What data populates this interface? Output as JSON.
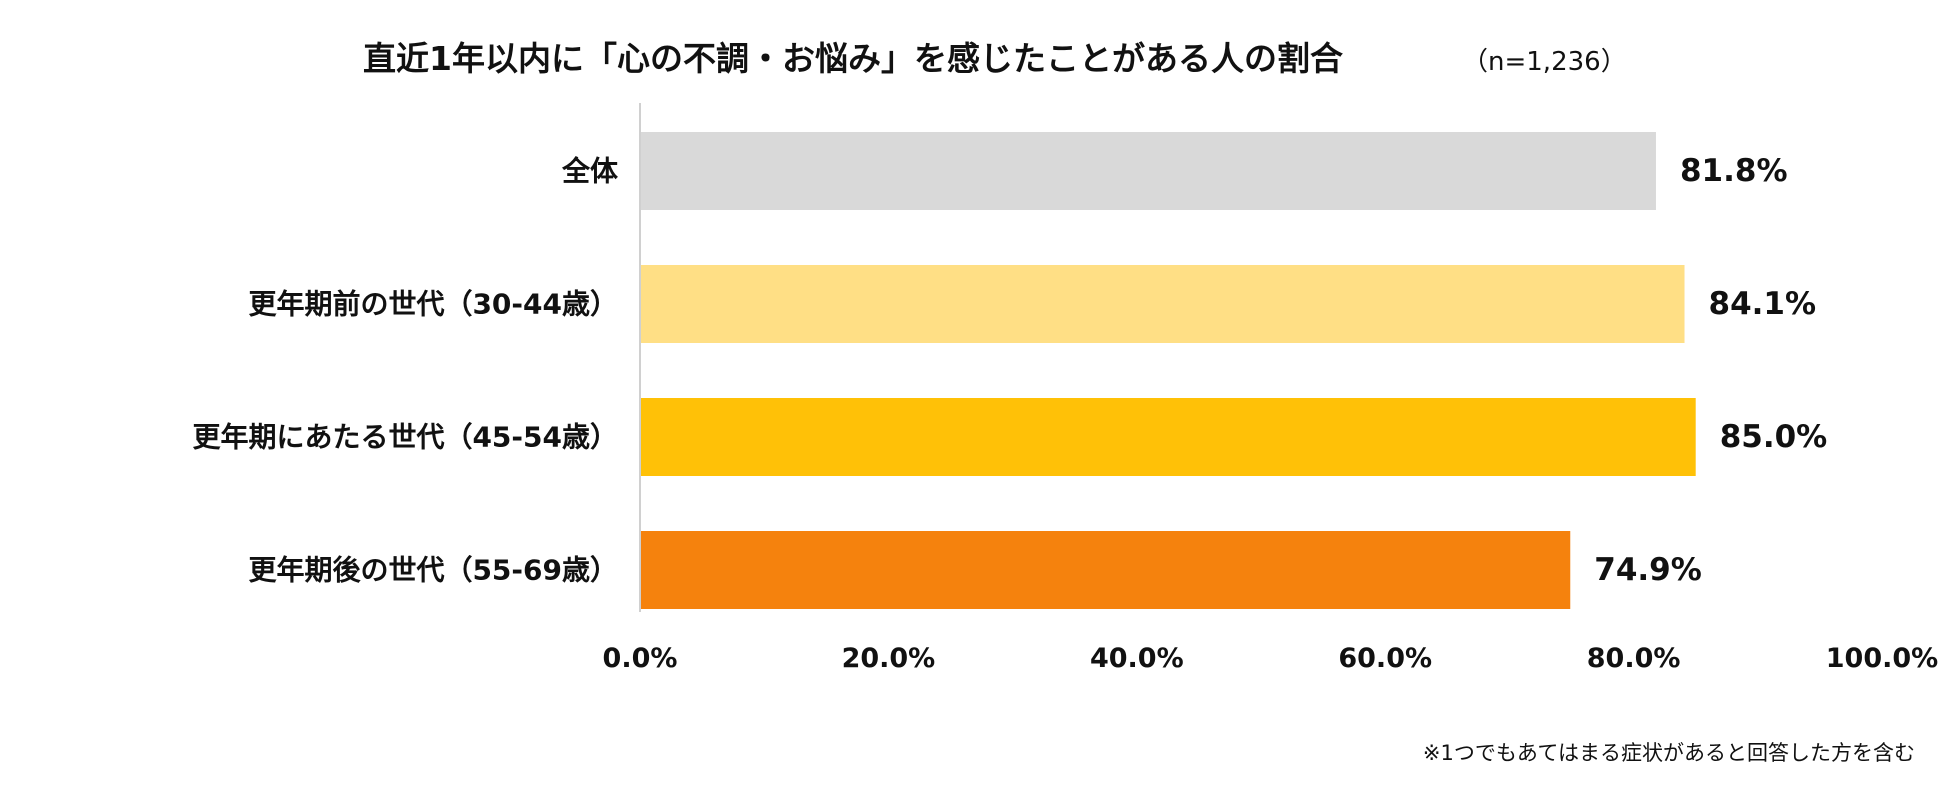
{
  "chart_data": {
    "type": "bar",
    "orientation": "horizontal",
    "title": "直近1年以内に「心の不調・お悩み」を感じたことがある人の割合",
    "subtitle": "（n=1,236）",
    "categories": [
      "全体",
      "更年期前の世代（30-44歳）",
      "更年期にあたる世代（45-54歳）",
      "更年期後の世代（55-69歳）"
    ],
    "values": [
      81.8,
      84.1,
      85.0,
      74.9
    ],
    "value_labels": [
      "81.8%",
      "84.1%",
      "85.0%",
      "74.9%"
    ],
    "colors": [
      "#d9d9d9",
      "#ffdf85",
      "#ffc107",
      "#f5820d"
    ],
    "xlim": [
      0,
      100
    ],
    "x_ticks": [
      0,
      20,
      40,
      60,
      80,
      100
    ],
    "x_tick_labels": [
      "0.0%",
      "20.0%",
      "40.0%",
      "60.0%",
      "80.0%",
      "100.0%"
    ],
    "grid": false,
    "legend": "none",
    "note": "※1つでもあてはまる症状があると回答した方を含む"
  }
}
